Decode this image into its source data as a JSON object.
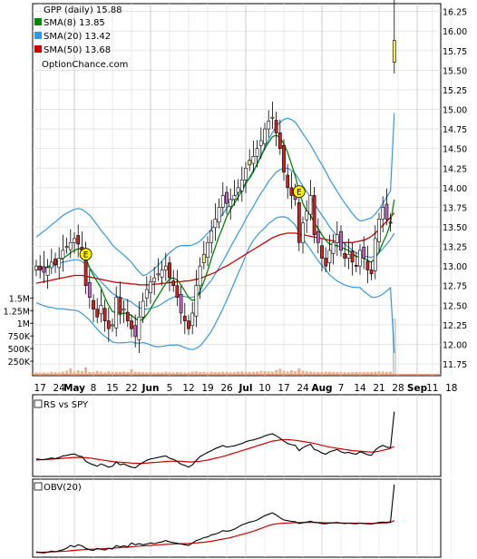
{
  "chart_data": [
    {
      "type": "candlestick",
      "panel": "price",
      "title": "GPP (daily) 15.88",
      "watermark": "OptionChance.com",
      "legend": [
        {
          "label": "SMA(8) 13.85",
          "color": "#008800"
        },
        {
          "label": "SMA(20) 13.42",
          "color": "#3399dd"
        },
        {
          "label": "SMA(50) 13.68",
          "color": "#cc0000"
        }
      ],
      "legend_position": "top-left",
      "ylim": [
        11.6,
        16.35
      ],
      "y_ticks": [
        "16.25",
        "16.00",
        "15.75",
        "15.50",
        "15.25",
        "15.00",
        "14.75",
        "14.50",
        "14.25",
        "14.00",
        "13.75",
        "13.50",
        "13.25",
        "13.00",
        "12.75",
        "12.50",
        "12.25",
        "12.00",
        "11.75"
      ],
      "y_tick_values": [
        16.25,
        16.0,
        15.75,
        15.5,
        15.25,
        15.0,
        14.75,
        14.5,
        14.25,
        14.0,
        13.75,
        13.5,
        13.25,
        13.0,
        12.75,
        12.5,
        12.25,
        12.0,
        11.75
      ],
      "earnings_markers": [
        {
          "label": "E",
          "day": 13,
          "value": 13.15
        },
        {
          "label": "E",
          "day": 69,
          "value": 13.95
        }
      ],
      "closes": [
        13.0,
        12.95,
        12.92,
        12.98,
        13.05,
        13.02,
        13.1,
        13.2,
        13.25,
        13.3,
        13.35,
        13.28,
        13.2,
        12.75,
        12.6,
        12.45,
        12.35,
        12.5,
        12.3,
        12.2,
        12.25,
        12.6,
        12.4,
        12.45,
        12.3,
        12.2,
        12.1,
        12.35,
        12.55,
        12.7,
        12.8,
        12.85,
        12.9,
        12.95,
        13.0,
        12.85,
        12.75,
        12.6,
        12.4,
        12.3,
        12.2,
        12.4,
        12.75,
        13.0,
        13.15,
        13.3,
        13.45,
        13.6,
        13.75,
        13.9,
        13.8,
        13.85,
        13.9,
        14.0,
        14.1,
        14.25,
        14.35,
        14.4,
        14.5,
        14.6,
        14.75,
        14.85,
        14.9,
        14.7,
        14.5,
        14.2,
        14.0,
        13.9,
        13.85,
        13.3,
        13.55,
        13.7,
        13.9,
        13.4,
        13.3,
        13.1,
        13.0,
        13.2,
        13.3,
        13.4,
        13.2,
        13.1,
        13.15,
        13.05,
        13.0,
        13.2,
        13.1,
        12.95,
        12.9,
        13.35,
        13.6,
        13.75,
        13.6,
        13.55,
        15.88
      ],
      "sma8": [
        13.0,
        12.98,
        12.97,
        12.99,
        13.02,
        13.04,
        13.07,
        13.1,
        13.13,
        13.17,
        13.2,
        13.22,
        13.22,
        13.1,
        12.98,
        12.88,
        12.8,
        12.72,
        12.6,
        12.5,
        12.42,
        12.4,
        12.38,
        12.4,
        12.39,
        12.37,
        12.33,
        12.3,
        12.32,
        12.38,
        12.45,
        12.54,
        12.62,
        12.7,
        12.78,
        12.83,
        12.85,
        12.82,
        12.76,
        12.68,
        12.6,
        12.56,
        12.58,
        12.68,
        12.8,
        12.94,
        13.1,
        13.24,
        13.38,
        13.5,
        13.63,
        13.72,
        13.8,
        13.88,
        13.96,
        14.05,
        14.13,
        14.22,
        14.3,
        14.4,
        14.5,
        14.58,
        14.65,
        14.67,
        14.64,
        14.56,
        14.45,
        14.3,
        14.15,
        13.95,
        13.8,
        13.7,
        13.65,
        13.55,
        13.48,
        13.4,
        13.33,
        13.28,
        13.27,
        13.26,
        13.24,
        13.22,
        13.2,
        13.16,
        13.12,
        13.12,
        13.1,
        13.07,
        13.05,
        13.1,
        13.18,
        13.3,
        13.4,
        13.55,
        13.85
      ],
      "sma20": [
        12.95,
        12.96,
        12.97,
        12.98,
        13.0,
        13.01,
        13.03,
        13.05,
        13.06,
        13.07,
        13.08,
        13.08,
        13.06,
        13.02,
        12.98,
        12.92,
        12.86,
        12.8,
        12.75,
        12.7,
        12.65,
        12.62,
        12.6,
        12.58,
        12.56,
        12.54,
        12.5,
        12.47,
        12.45,
        12.45,
        12.46,
        12.47,
        12.49,
        12.52,
        12.55,
        12.58,
        12.6,
        12.62,
        12.62,
        12.61,
        12.6,
        12.6,
        12.62,
        12.65,
        12.7,
        12.76,
        12.82,
        12.9,
        12.98,
        13.06,
        13.15,
        13.24,
        13.33,
        13.42,
        13.5,
        13.6,
        13.68,
        13.76,
        13.85,
        13.93,
        14.0,
        14.08,
        14.14,
        14.2,
        14.23,
        14.25,
        14.25,
        14.22,
        14.18,
        14.1,
        14.02,
        13.95,
        13.88,
        13.8,
        13.72,
        13.65,
        13.58,
        13.5,
        13.44,
        13.38,
        13.33,
        13.28,
        13.24,
        13.2,
        13.17,
        13.15,
        13.13,
        13.12,
        13.11,
        13.13,
        13.17,
        13.22,
        13.28,
        13.34,
        13.42
      ],
      "sma50": [
        12.78,
        12.79,
        12.8,
        12.81,
        12.82,
        12.83,
        12.84,
        12.85,
        12.86,
        12.87,
        12.88,
        12.88,
        12.88,
        12.87,
        12.86,
        12.85,
        12.84,
        12.83,
        12.82,
        12.81,
        12.8,
        12.79,
        12.79,
        12.78,
        12.78,
        12.77,
        12.77,
        12.76,
        12.76,
        12.76,
        12.76,
        12.77,
        12.77,
        12.78,
        12.78,
        12.79,
        12.79,
        12.8,
        12.8,
        12.81,
        12.81,
        12.82,
        12.83,
        12.84,
        12.86,
        12.88,
        12.9,
        12.92,
        12.95,
        12.98,
        13.0,
        13.03,
        13.06,
        13.09,
        13.12,
        13.15,
        13.18,
        13.21,
        13.24,
        13.27,
        13.3,
        13.33,
        13.36,
        13.38,
        13.4,
        13.41,
        13.42,
        13.42,
        13.42,
        13.41,
        13.4,
        13.39,
        13.38,
        13.37,
        13.36,
        13.35,
        13.34,
        13.33,
        13.32,
        13.31,
        13.3,
        13.3,
        13.3,
        13.3,
        13.31,
        13.32,
        13.33,
        13.35,
        13.38,
        13.42,
        13.47,
        13.52,
        13.57,
        13.62,
        13.68
      ]
    },
    {
      "type": "bar",
      "panel": "volume",
      "y_ticks": [
        "1.5M",
        "1.25M",
        "1M",
        "750K",
        "500K",
        "250K"
      ],
      "y_tick_values": [
        1500000,
        1250000,
        1000000,
        750000,
        500000,
        250000
      ],
      "ylim": [
        0,
        1650000
      ],
      "volumes": [
        30000,
        25000,
        28000,
        22000,
        40000,
        35000,
        30000,
        45000,
        60000,
        110000,
        50000,
        70000,
        55000,
        130000,
        40000,
        35000,
        60000,
        45000,
        30000,
        50000,
        38000,
        42000,
        35000,
        48000,
        36000,
        90000,
        40000,
        38000,
        32000,
        30000,
        35000,
        28000,
        30000,
        26000,
        40000,
        30000,
        28000,
        35000,
        33000,
        30000,
        28000,
        45000,
        50000,
        38000,
        35000,
        30000,
        40000,
        36000,
        34000,
        42000,
        38000,
        30000,
        36000,
        45000,
        50000,
        40000,
        42000,
        38000,
        46000,
        60000,
        52000,
        48000,
        44000,
        75000,
        100000,
        60000,
        50000,
        70000,
        55000,
        110000,
        60000,
        50000,
        45000,
        40000,
        38000,
        36000,
        42000,
        40000,
        38000,
        34000,
        36000,
        32000,
        30000,
        35000,
        38000,
        36000,
        40000,
        38000,
        36000,
        42000,
        50000,
        46000,
        40000,
        44000,
        1080000
      ]
    },
    {
      "type": "line",
      "panel": "relative-strength",
      "legend": [
        {
          "label": "RS vs SPY",
          "color": "#000000"
        }
      ],
      "values": [
        0.5,
        0.48,
        0.47,
        0.5,
        0.53,
        0.51,
        0.55,
        0.6,
        0.62,
        0.65,
        0.67,
        0.6,
        0.58,
        0.42,
        0.35,
        0.3,
        0.25,
        0.33,
        0.28,
        0.22,
        0.25,
        0.4,
        0.3,
        0.33,
        0.27,
        0.22,
        0.2,
        0.3,
        0.38,
        0.45,
        0.5,
        0.52,
        0.55,
        0.58,
        0.6,
        0.52,
        0.48,
        0.42,
        0.32,
        0.28,
        0.22,
        0.3,
        0.45,
        0.58,
        0.65,
        0.72,
        0.78,
        0.85,
        0.9,
        0.95,
        0.9,
        0.92,
        0.94,
        0.98,
        1.02,
        1.08,
        1.12,
        1.14,
        1.18,
        1.22,
        1.28,
        1.32,
        1.35,
        1.28,
        1.2,
        1.1,
        1.02,
        0.98,
        0.96,
        0.78,
        0.88,
        0.94,
        1.0,
        0.82,
        0.78,
        0.7,
        0.66,
        0.74,
        0.78,
        0.82,
        0.74,
        0.7,
        0.72,
        0.68,
        0.66,
        0.74,
        0.7,
        0.64,
        0.62,
        0.8,
        0.9,
        0.96,
        0.9,
        0.88,
        2.1
      ],
      "ma": [
        0.46,
        0.47,
        0.48,
        0.48,
        0.49,
        0.5,
        0.51,
        0.52,
        0.53,
        0.54,
        0.55,
        0.55,
        0.55,
        0.54,
        0.53,
        0.51,
        0.49,
        0.47,
        0.45,
        0.43,
        0.41,
        0.4,
        0.39,
        0.38,
        0.37,
        0.36,
        0.35,
        0.35,
        0.35,
        0.36,
        0.37,
        0.38,
        0.39,
        0.4,
        0.41,
        0.42,
        0.42,
        0.42,
        0.42,
        0.41,
        0.4,
        0.4,
        0.41,
        0.42,
        0.44,
        0.46,
        0.49,
        0.52,
        0.55,
        0.58,
        0.62,
        0.66,
        0.7,
        0.74,
        0.78,
        0.82,
        0.86,
        0.9,
        0.94,
        0.98,
        1.02,
        1.06,
        1.1,
        1.12,
        1.14,
        1.15,
        1.15,
        1.14,
        1.13,
        1.11,
        1.09,
        1.07,
        1.05,
        1.02,
        0.99,
        0.96,
        0.93,
        0.9,
        0.88,
        0.86,
        0.84,
        0.82,
        0.8,
        0.78,
        0.77,
        0.76,
        0.75,
        0.74,
        0.73,
        0.74,
        0.76,
        0.79,
        0.82,
        0.86,
        0.92
      ],
      "ylim": [
        0,
        2.3
      ]
    },
    {
      "type": "line",
      "panel": "on-balance-volume",
      "legend": [
        {
          "label": "OBV(20)",
          "color": "#000000"
        }
      ],
      "values": [
        0.1,
        0.08,
        0.07,
        0.09,
        0.12,
        0.1,
        0.13,
        0.16,
        0.2,
        0.28,
        0.24,
        0.3,
        0.27,
        0.2,
        0.16,
        0.14,
        0.2,
        0.17,
        0.15,
        0.2,
        0.18,
        0.28,
        0.24,
        0.27,
        0.24,
        0.35,
        0.3,
        0.33,
        0.3,
        0.32,
        0.35,
        0.33,
        0.36,
        0.38,
        0.42,
        0.38,
        0.36,
        0.34,
        0.32,
        0.3,
        0.28,
        0.35,
        0.42,
        0.45,
        0.5,
        0.52,
        0.58,
        0.6,
        0.64,
        0.7,
        0.68,
        0.7,
        0.74,
        0.8,
        0.86,
        0.9,
        0.94,
        0.96,
        1.0,
        1.06,
        1.12,
        1.16,
        1.2,
        1.14,
        1.06,
        1.0,
        0.98,
        0.96,
        0.95,
        0.9,
        0.92,
        0.94,
        0.96,
        0.93,
        0.92,
        0.9,
        0.89,
        0.91,
        0.92,
        0.93,
        0.91,
        0.9,
        0.91,
        0.9,
        0.89,
        0.91,
        0.9,
        0.89,
        0.88,
        0.91,
        0.93,
        0.94,
        0.93,
        0.95,
        2.0
      ],
      "ma": [
        0.08,
        0.085,
        0.09,
        0.095,
        0.1,
        0.105,
        0.11,
        0.115,
        0.12,
        0.13,
        0.14,
        0.15,
        0.16,
        0.165,
        0.17,
        0.175,
        0.18,
        0.185,
        0.19,
        0.195,
        0.2,
        0.21,
        0.22,
        0.225,
        0.23,
        0.24,
        0.25,
        0.26,
        0.27,
        0.275,
        0.28,
        0.29,
        0.3,
        0.305,
        0.31,
        0.315,
        0.32,
        0.325,
        0.33,
        0.33,
        0.335,
        0.34,
        0.35,
        0.36,
        0.37,
        0.385,
        0.4,
        0.42,
        0.44,
        0.46,
        0.48,
        0.5,
        0.53,
        0.56,
        0.59,
        0.62,
        0.65,
        0.68,
        0.72,
        0.76,
        0.8,
        0.84,
        0.87,
        0.89,
        0.9,
        0.91,
        0.915,
        0.92,
        0.925,
        0.925,
        0.93,
        0.93,
        0.93,
        0.93,
        0.925,
        0.925,
        0.92,
        0.92,
        0.92,
        0.915,
        0.915,
        0.91,
        0.91,
        0.91,
        0.91,
        0.91,
        0.905,
        0.905,
        0.9,
        0.905,
        0.91,
        0.915,
        0.92,
        0.93,
        0.98
      ],
      "ylim": [
        0,
        2.1
      ]
    }
  ],
  "x_axis": {
    "labels": [
      "17",
      "24",
      "May",
      "8",
      "15",
      "22",
      "Jun",
      "5",
      "12",
      "19",
      "26",
      "Jul",
      "10",
      "17",
      "24",
      "Aug",
      "7",
      "14",
      "21",
      "28",
      "Sep",
      "11",
      "18"
    ],
    "label_days": [
      1,
      6,
      10,
      15,
      20,
      25,
      30,
      35,
      40,
      45,
      50,
      55,
      60,
      65,
      70,
      75,
      80,
      85,
      90,
      95,
      100,
      104,
      109
    ],
    "bold_labels": [
      "May",
      "Jun",
      "Jul",
      "Aug",
      "Sep"
    ]
  }
}
